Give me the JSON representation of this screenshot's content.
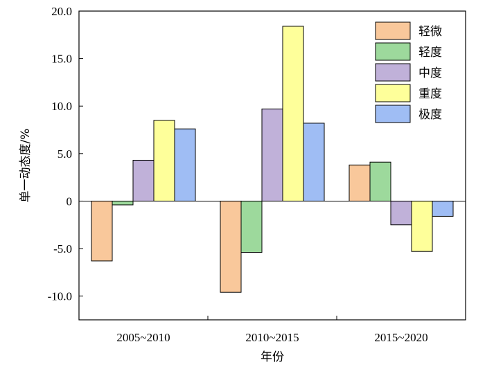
{
  "chart_data": {
    "type": "bar",
    "categories": [
      "2005~2010",
      "2010~2015",
      "2015~2020"
    ],
    "series": [
      {
        "name": "轻微",
        "color": "#F9C89B",
        "values": [
          -6.3,
          -9.6,
          3.8
        ]
      },
      {
        "name": "轻度",
        "color": "#9DD99C",
        "values": [
          -0.4,
          -5.4,
          4.1
        ]
      },
      {
        "name": "中度",
        "color": "#C0B1D9",
        "values": [
          4.3,
          9.7,
          -2.5
        ]
      },
      {
        "name": "重度",
        "color": "#FEFF9A",
        "values": [
          8.5,
          18.4,
          -5.3
        ]
      },
      {
        "name": "极度",
        "color": "#9FBDF4",
        "values": [
          7.6,
          8.2,
          -1.6
        ]
      }
    ],
    "xlabel": "年份",
    "ylabel": "单一动态度/%",
    "ylim": [
      -12.5,
      20.0
    ],
    "yticks": [
      -10.0,
      -5.0,
      0,
      5.0,
      10.0,
      15.0,
      20.0
    ],
    "ytick_labels": [
      "-10.0",
      "-5.0",
      "0",
      "5.0",
      "10.0",
      "15.0",
      "20.0"
    ],
    "grid": false,
    "legend_position": "top-right",
    "zero_line": true
  }
}
